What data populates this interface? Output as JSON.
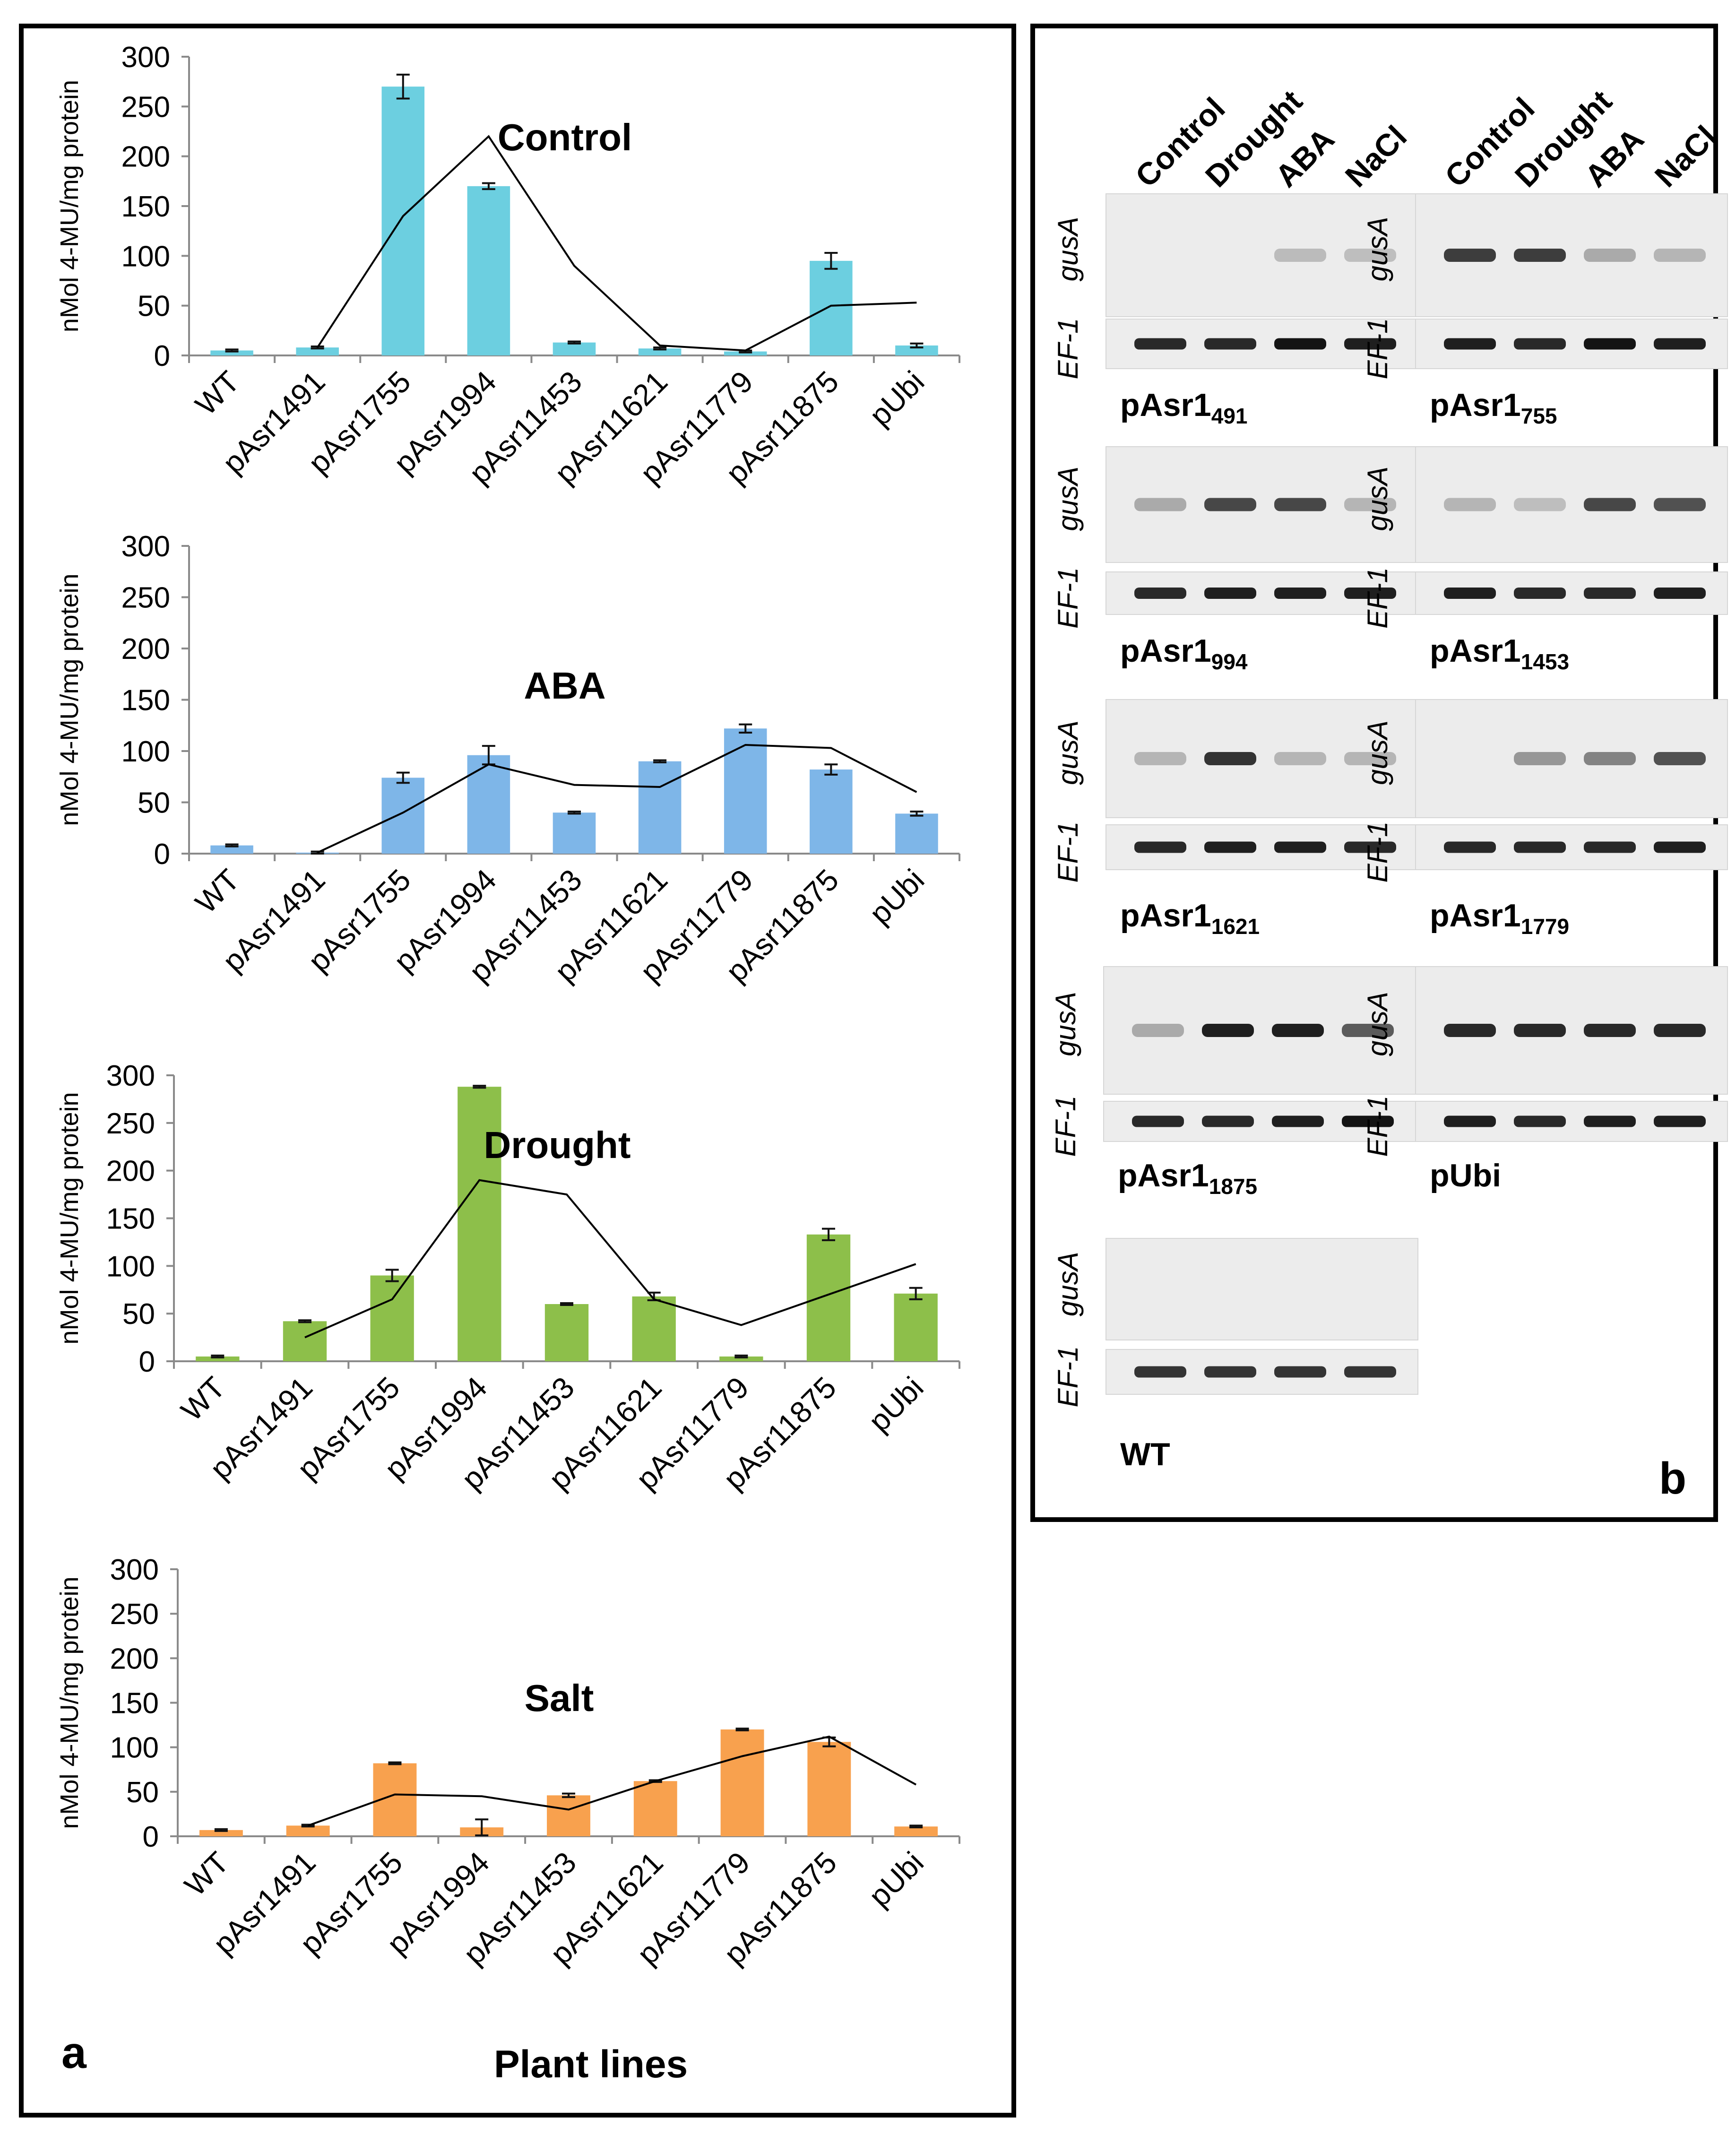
{
  "panel_a": {
    "label": "a",
    "x_axis_title": "Plant lines",
    "y_axis_title": "nMol 4-MU/mg protein"
  },
  "chart_data": [
    {
      "type": "bar",
      "title": "Control",
      "color": "#6ccfe0",
      "categories": [
        "WT",
        "pAsr1491",
        "pAsr1755",
        "pAsr1994",
        "pAsr11453",
        "pAsr11621",
        "pAsr11779",
        "pAsr11875",
        "pUbi"
      ],
      "values": [
        5,
        8,
        270,
        170,
        13,
        7,
        4,
        95,
        10
      ],
      "errors": [
        1,
        1,
        12,
        3,
        1,
        1,
        1,
        8,
        2
      ],
      "trend": [
        null,
        8,
        140,
        220,
        90,
        10,
        5,
        50,
        53
      ],
      "ylabel": "nMol 4-MU/mg protein",
      "ylim": [
        0,
        300
      ],
      "yticks": [
        0,
        50,
        100,
        150,
        200,
        250,
        300
      ]
    },
    {
      "type": "bar",
      "title": "ABA",
      "color": "#7eb6e8",
      "categories": [
        "WT",
        "pAsr1491",
        "pAsr1755",
        "pAsr1994",
        "pAsr11453",
        "pAsr11621",
        "pAsr11779",
        "pAsr11875",
        "pUbi"
      ],
      "values": [
        8,
        1,
        74,
        96,
        40,
        90,
        122,
        82,
        39
      ],
      "errors": [
        1,
        1,
        5,
        9,
        1,
        1,
        4,
        5,
        2
      ],
      "trend": [
        null,
        1,
        40,
        87,
        67,
        65,
        106,
        103,
        60
      ],
      "ylabel": "nMol 4-MU/mg protein",
      "ylim": [
        0,
        300
      ],
      "yticks": [
        0,
        50,
        100,
        150,
        200,
        250,
        300
      ]
    },
    {
      "type": "bar",
      "title": "Drought",
      "color": "#8dbf4a",
      "categories": [
        "WT",
        "pAsr1491",
        "pAsr1755",
        "pAsr1994",
        "pAsr11453",
        "pAsr11621",
        "pAsr11779",
        "pAsr11875",
        "pUbi"
      ],
      "values": [
        5,
        42,
        90,
        288,
        60,
        68,
        5,
        133,
        71
      ],
      "errors": [
        1,
        1,
        6,
        1,
        1,
        4,
        1,
        6,
        6
      ],
      "trend": [
        null,
        25,
        65,
        190,
        175,
        65,
        38,
        70,
        102
      ],
      "ylabel": "nMol 4-MU/mg protein",
      "ylim": [
        0,
        300
      ],
      "yticks": [
        0,
        50,
        100,
        150,
        200,
        250,
        300
      ]
    },
    {
      "type": "bar",
      "title": "Salt",
      "color": "#f8a14e",
      "categories": [
        "WT",
        "pAsr1491",
        "pAsr1755",
        "pAsr1994",
        "pAsr11453",
        "pAsr11621",
        "pAsr11779",
        "pAsr11875",
        "pUbi"
      ],
      "values": [
        7,
        12,
        82,
        10,
        46,
        62,
        120,
        106,
        11
      ],
      "errors": [
        1,
        1,
        1,
        9,
        2,
        1,
        1,
        5,
        1
      ],
      "trend": [
        null,
        12,
        47,
        45,
        30,
        62,
        90,
        112,
        58
      ],
      "ylabel": "nMol 4-MU/mg protein",
      "ylim": [
        0,
        300
      ],
      "yticks": [
        0,
        50,
        100,
        150,
        200,
        250,
        300
      ]
    }
  ],
  "panel_b": {
    "label": "b",
    "conditions": [
      "Control",
      "Drought",
      "ABA",
      "NaCl"
    ],
    "gene_labels": {
      "reporter": "gusA",
      "reference": "EF-1"
    },
    "blots": [
      {
        "base": "pAsr1",
        "sub": "491",
        "gus": [
          0.0,
          0.0,
          0.22,
          0.2
        ],
        "ef": [
          0.9,
          0.9,
          1.0,
          0.95
        ]
      },
      {
        "base": "pAsr1",
        "sub": "755",
        "gus": [
          0.85,
          0.85,
          0.3,
          0.25
        ],
        "ef": [
          0.95,
          0.9,
          1.0,
          0.95
        ]
      },
      {
        "base": "pAsr1",
        "sub": "994",
        "gus": [
          0.3,
          0.8,
          0.8,
          0.25
        ],
        "ef": [
          0.9,
          0.95,
          0.95,
          0.95
        ]
      },
      {
        "base": "pAsr1",
        "sub": "1453",
        "gus": [
          0.25,
          0.2,
          0.8,
          0.75
        ],
        "ef": [
          0.95,
          0.9,
          0.9,
          0.95
        ]
      },
      {
        "base": "pAsr1",
        "sub": "1621",
        "gus": [
          0.25,
          0.9,
          0.25,
          0.25
        ],
        "ef": [
          0.9,
          0.95,
          0.95,
          0.9
        ]
      },
      {
        "base": "pAsr1",
        "sub": "1779",
        "gus": [
          0.0,
          0.4,
          0.5,
          0.75
        ],
        "ef": [
          0.9,
          0.9,
          0.9,
          0.95
        ]
      },
      {
        "base": "pAsr1",
        "sub": "1875",
        "gus": [
          0.3,
          1.0,
          1.0,
          0.7
        ],
        "ef": [
          0.9,
          0.9,
          0.95,
          1.0
        ]
      },
      {
        "base": "pUbi",
        "sub": "",
        "gus": [
          0.95,
          0.95,
          0.95,
          0.95
        ],
        "ef": [
          0.95,
          0.9,
          0.95,
          0.95
        ]
      },
      {
        "base": "WT",
        "sub": "",
        "gus": [
          0.0,
          0.0,
          0.0,
          0.0
        ],
        "ef": [
          0.85,
          0.85,
          0.85,
          0.85
        ]
      }
    ]
  }
}
